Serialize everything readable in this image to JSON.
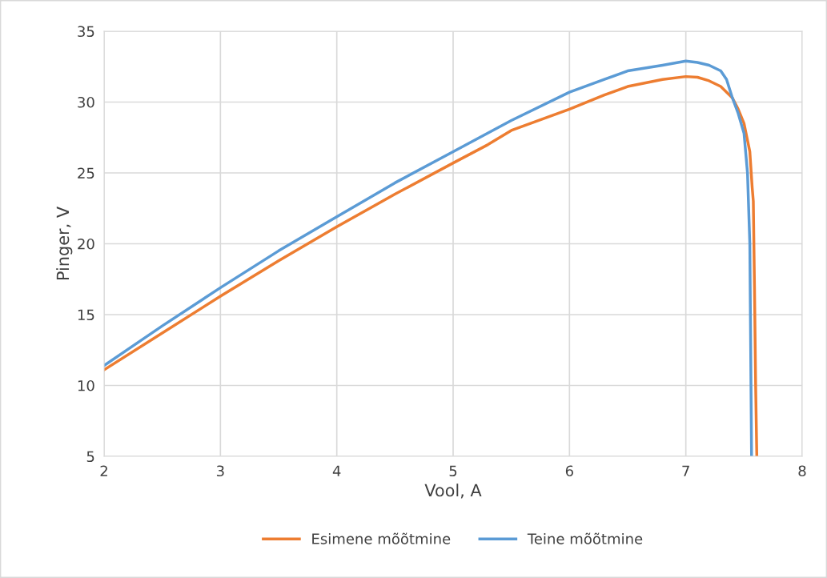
{
  "chart_data": {
    "type": "line",
    "xlabel": "Vool, A",
    "ylabel": "Pinger, V",
    "xlim": [
      2,
      8
    ],
    "xticks": [
      2,
      3,
      4,
      5,
      6,
      7,
      8
    ],
    "ylim": [
      5,
      35
    ],
    "yticks": [
      5,
      10,
      15,
      20,
      25,
      30,
      35
    ],
    "grid": true,
    "legend": "bottom",
    "marker": "none",
    "line_style": "solid",
    "series": [
      {
        "name": "Esimene mõõtmine",
        "color": "#ed7d31",
        "x": [
          2,
          2.5,
          3,
          3.5,
          4,
          4.5,
          5,
          5.3,
          5.5,
          6,
          6.3,
          6.5,
          6.8,
          7,
          7.1,
          7.2,
          7.3,
          7.4,
          7.45,
          7.5,
          7.55,
          7.57,
          7.58,
          7.59,
          7.6,
          7.61
        ],
        "values": [
          11.1,
          13.7,
          16.3,
          18.8,
          21.2,
          23.5,
          25.7,
          27.0,
          28.0,
          29.5,
          30.5,
          31.1,
          31.6,
          31.8,
          31.75,
          31.5,
          31.1,
          30.3,
          29.5,
          28.5,
          26.5,
          24.0,
          23.0,
          17.0,
          10.0,
          5.0
        ]
      },
      {
        "name": "Teine mõõtmine",
        "color": "#5b9bd5",
        "x": [
          2,
          2.5,
          3,
          3.5,
          4,
          4.5,
          5,
          5.5,
          6,
          6.3,
          6.5,
          6.8,
          7,
          7.1,
          7.2,
          7.3,
          7.35,
          7.4,
          7.45,
          7.5,
          7.53,
          7.55,
          7.555,
          7.56,
          7.565
        ],
        "values": [
          11.4,
          14.2,
          16.9,
          19.5,
          21.9,
          24.3,
          26.5,
          28.7,
          30.7,
          31.6,
          32.2,
          32.6,
          32.9,
          32.8,
          32.6,
          32.2,
          31.6,
          30.3,
          29.2,
          27.8,
          25.0,
          20.0,
          15.0,
          10.0,
          5.0
        ]
      }
    ]
  }
}
